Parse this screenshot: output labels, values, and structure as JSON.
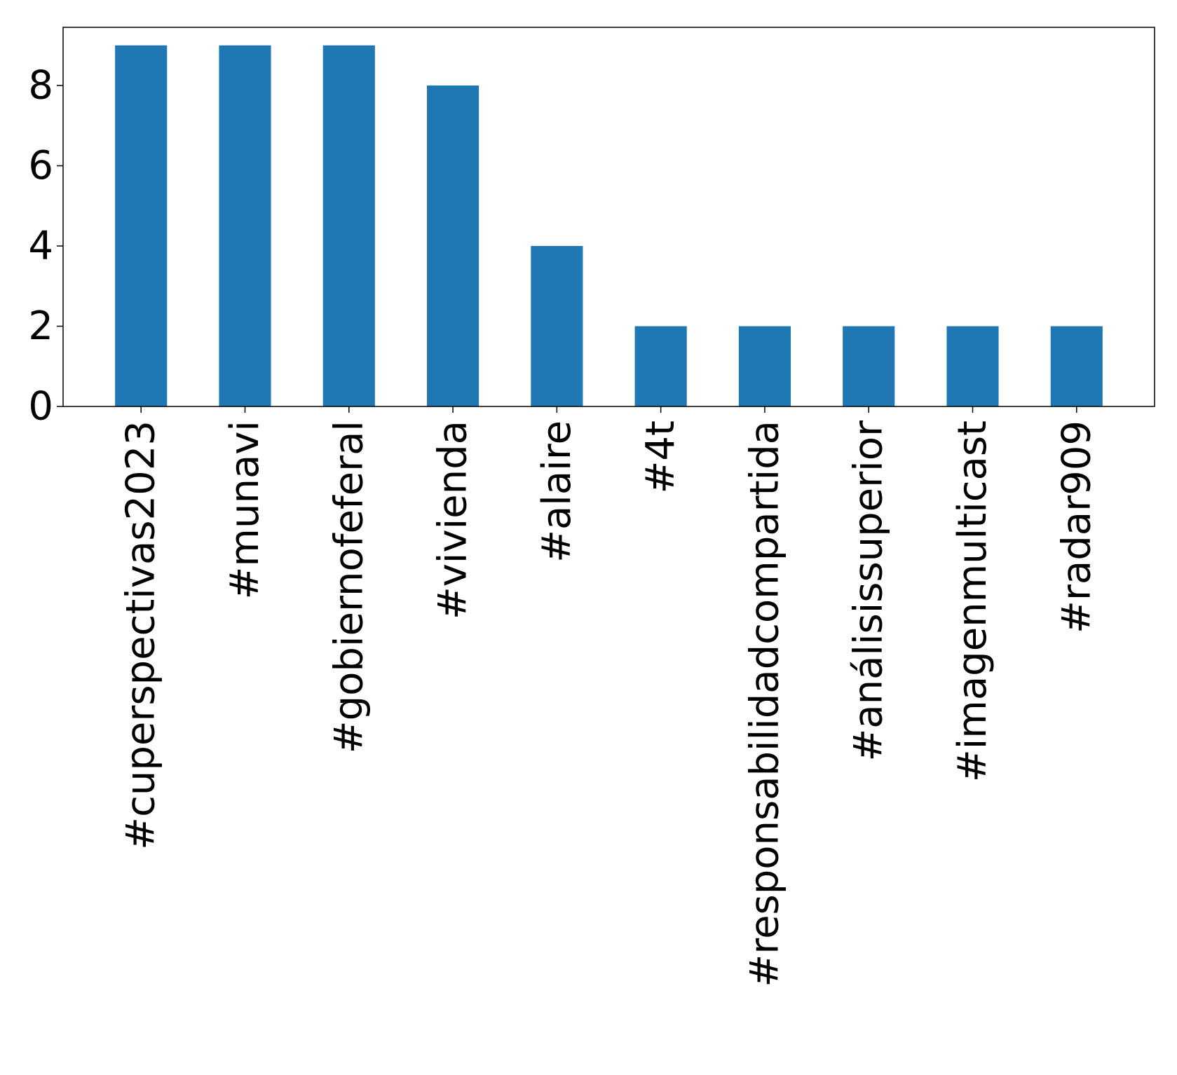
{
  "chart_data": {
    "type": "bar",
    "title": "",
    "xlabel": "",
    "ylabel": "",
    "categories": [
      "#cuperspectivas2023",
      "#munavi",
      "#gobiernofeferal",
      "#vivienda",
      "#alaire",
      "#4t",
      "#responsabilidadcompartida",
      "#análisissuperior",
      "#imagenmulticast",
      "#radar909"
    ],
    "values": [
      9,
      9,
      9,
      8,
      4,
      2,
      2,
      2,
      2,
      2
    ],
    "ylim": [
      0,
      9.45
    ],
    "yticks": [
      0,
      2,
      4,
      6,
      8
    ],
    "grid": false,
    "legend": "none",
    "colors": {
      "bar": "#1f77b4",
      "axis": "#000000",
      "background": "#ffffff"
    }
  }
}
